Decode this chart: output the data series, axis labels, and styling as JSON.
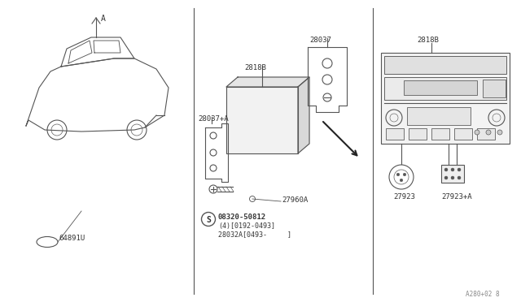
{
  "bg_color": "#ffffff",
  "line_color": "#555555",
  "footer": "A280+02 8",
  "parts": {
    "car_label": "A",
    "part_64891U": "64891U",
    "part_28037": "28037",
    "part_2818B_left": "2818B",
    "part_28037A": "28037+A",
    "part_27960A": "27960A",
    "part_2818B_right": "2818B",
    "part_27923": "27923",
    "part_27923A": "27923+A",
    "screw_label": "08320-50812",
    "screw_line2": "(4)[0192-0493]",
    "screw_line3": "28032A[0493-     ]"
  }
}
